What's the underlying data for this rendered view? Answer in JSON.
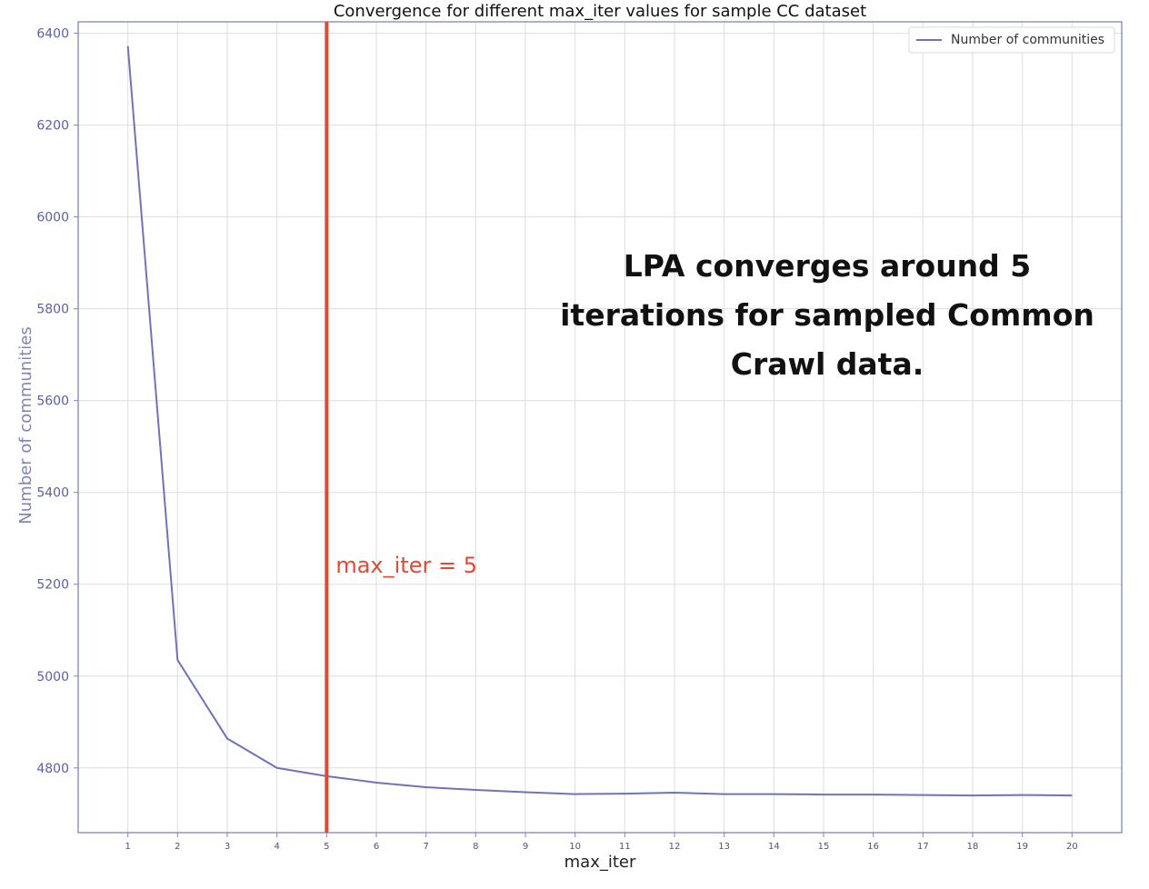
{
  "chart_data": {
    "type": "line",
    "title": "Convergence for different max_iter values for sample CC dataset",
    "xlabel": "max_iter",
    "ylabel": "Number of communities",
    "x": [
      1,
      2,
      3,
      4,
      5,
      6,
      7,
      8,
      9,
      10,
      11,
      12,
      13,
      14,
      15,
      16,
      17,
      18,
      19,
      20
    ],
    "series": [
      {
        "name": "Number of communities",
        "color": "#6f74b8",
        "values": [
          6372,
          5035,
          4864,
          4800,
          4782,
          4768,
          4758,
          4752,
          4747,
          4743,
          4744,
          4746,
          4743,
          4743,
          4742,
          4742,
          4741,
          4740,
          4741,
          4740
        ]
      }
    ],
    "x_ticks": [
      "1",
      "2",
      "3",
      "4",
      "5",
      "6",
      "7",
      "8",
      "9",
      "10",
      "11",
      "12",
      "13",
      "14",
      "15",
      "16",
      "17",
      "18",
      "19",
      "20"
    ],
    "y_ticks": [
      "4800",
      "5000",
      "5200",
      "5400",
      "5600",
      "5800",
      "6000",
      "6200",
      "6400"
    ],
    "xlim": [
      0.0,
      21.0
    ],
    "ylim": [
      4659,
      6425
    ],
    "grid": true,
    "legend": {
      "position": "top-right",
      "label": "Number of communities"
    },
    "annotations": {
      "vline": {
        "x": 5,
        "color": "#e04a35",
        "label": "max_iter = 5"
      },
      "callout": [
        "LPA converges around 5",
        "iterations for sampled Common",
        "Crawl data."
      ]
    },
    "colors": {
      "axis": "#7f85b9",
      "tick_label": "#5a5fa6",
      "grid": "#dedede",
      "title": "#111111",
      "callout": "#111111"
    }
  }
}
